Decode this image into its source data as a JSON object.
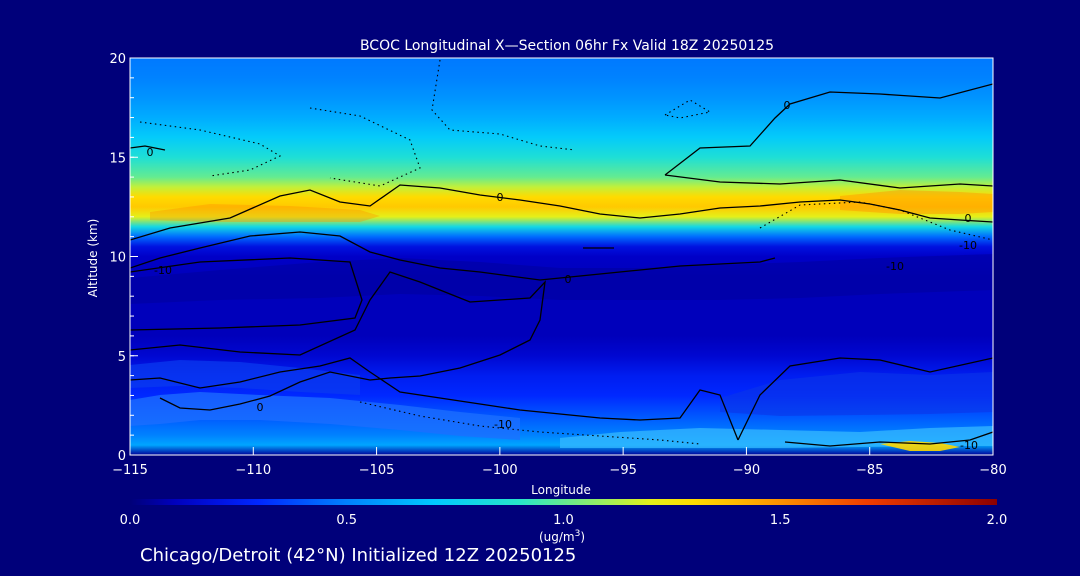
{
  "chart_data": {
    "type": "heatmap",
    "title": "BCOC Longitudinal X—Section 06hr  Fx Valid 18Z 20250125",
    "xlabel": "Longitude",
    "ylabel": "Altitude (km)",
    "xlim": [
      -115,
      -80
    ],
    "ylim": [
      0,
      20
    ],
    "x_ticks": [
      -115,
      -110,
      -105,
      -100,
      -95,
      -90,
      -85,
      -80
    ],
    "x_tick_labels": [
      "−115",
      "−110",
      "−105",
      "−100",
      "−95",
      "−90",
      "−85",
      "−80"
    ],
    "y_ticks": [
      0,
      5,
      10,
      15,
      20
    ],
    "y_tick_labels": [
      "0",
      "5",
      "10",
      "15",
      "20"
    ],
    "colorbar": {
      "min": 0.0,
      "max": 2.0,
      "ticks": [
        0.0,
        0.5,
        1.0,
        1.5,
        2.0
      ],
      "tick_labels": [
        "0.0",
        "0.5",
        "1.0",
        "1.5",
        "2.0"
      ],
      "label_main": "1.0",
      "units": "(ug/m",
      "units_sup": "3",
      "units_close": ")"
    },
    "contour_labels": [
      "0",
      "0",
      "0",
      "0",
      "-10",
      "-10",
      "-10",
      "-10",
      "0",
      "0",
      "-10"
    ],
    "footer": "Chicago/Detroit (42°N) Initialized 12Z 20250125",
    "profile": {
      "altitudes": [
        0,
        0.5,
        1,
        1.5,
        2,
        2.5,
        3,
        4,
        5,
        6,
        7,
        8,
        9,
        10,
        10.5,
        11,
        11.5,
        12,
        12.5,
        13,
        13.5,
        14,
        15,
        16,
        17,
        18,
        19,
        20
      ],
      "values": [
        0.05,
        0.6,
        0.5,
        0.45,
        0.4,
        0.35,
        0.3,
        0.25,
        0.15,
        0.1,
        0.1,
        0.1,
        0.1,
        0.12,
        0.2,
        0.45,
        0.8,
        1.2,
        1.35,
        1.3,
        1.15,
        1.0,
        0.85,
        0.72,
        0.62,
        0.55,
        0.5,
        0.48
      ]
    },
    "colors": {
      "background": "#00007a",
      "line": "#000000",
      "text": "#ffffff"
    }
  }
}
